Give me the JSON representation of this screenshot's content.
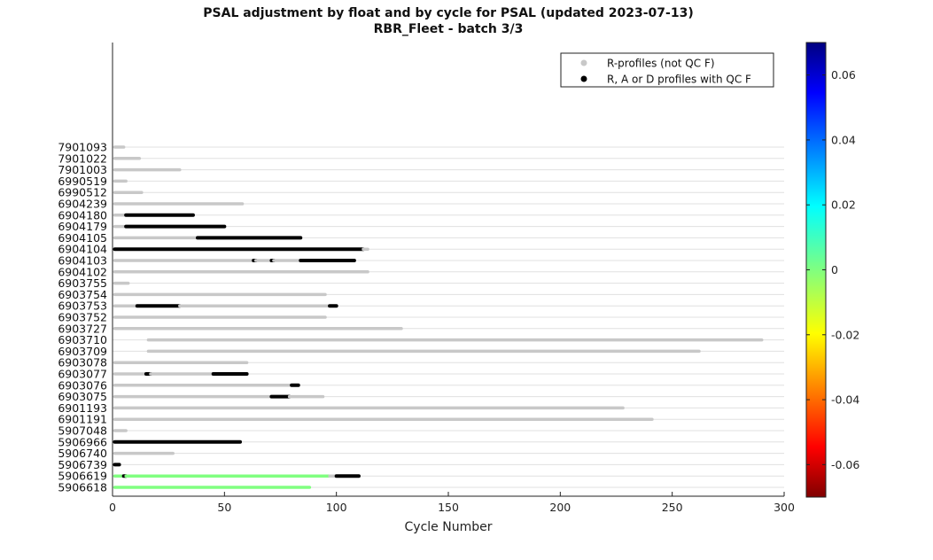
{
  "title_line1": "PSAL adjustment by float and by cycle for PSAL (updated 2023-07-13)",
  "title_line2": "RBR_Fleet - batch 3/3",
  "chart_data": {
    "type": "scatter",
    "xlabel": "Cycle Number",
    "ylabel": "",
    "xlim": [
      0,
      300
    ],
    "xticks": [
      0,
      50,
      100,
      150,
      200,
      250,
      300
    ],
    "grid": "horizontal",
    "legend": {
      "placement": "top-right",
      "entries": [
        {
          "label": "R-profiles (not QC F)",
          "color": "#c8c8c8"
        },
        {
          "label": "R, A or D profiles with QC F",
          "color": "#000000"
        }
      ]
    },
    "colorbar": {
      "range": [
        -0.07,
        0.07
      ],
      "ticks": [
        0.06,
        0.04,
        0.02,
        0,
        -0.02,
        -0.04,
        -0.06
      ],
      "tick_labels": [
        "0.06",
        "0.04",
        "0.02",
        "0",
        "-0.02",
        "-0.04",
        "-0.06"
      ],
      "colormap": "jet"
    },
    "floats": [
      {
        "id": "7901093",
        "segments": [
          [
            1,
            5,
            "gray"
          ]
        ]
      },
      {
        "id": "7901022",
        "segments": [
          [
            1,
            12,
            "gray"
          ]
        ]
      },
      {
        "id": "7901003",
        "segments": [
          [
            1,
            30,
            "gray"
          ]
        ]
      },
      {
        "id": "6990519",
        "segments": [
          [
            1,
            6,
            "gray"
          ]
        ]
      },
      {
        "id": "6990512",
        "segments": [
          [
            1,
            13,
            "gray"
          ]
        ]
      },
      {
        "id": "6904239",
        "segments": [
          [
            1,
            58,
            "gray"
          ]
        ]
      },
      {
        "id": "6904180",
        "segments": [
          [
            1,
            6,
            "gray"
          ],
          [
            6,
            36,
            "black"
          ]
        ]
      },
      {
        "id": "6904179",
        "segments": [
          [
            1,
            6,
            "gray"
          ],
          [
            6,
            50,
            "black"
          ]
        ]
      },
      {
        "id": "6904105",
        "segments": [
          [
            1,
            38,
            "gray"
          ],
          [
            38,
            84,
            "black"
          ]
        ]
      },
      {
        "id": "6904104",
        "segments": [
          [
            1,
            112,
            "black"
          ],
          [
            112,
            114,
            "gray"
          ]
        ]
      },
      {
        "id": "6904103",
        "segments": [
          [
            1,
            63,
            "gray"
          ],
          [
            63,
            64,
            "black"
          ],
          [
            64,
            71,
            "gray"
          ],
          [
            71,
            72,
            "black"
          ],
          [
            72,
            84,
            "gray"
          ],
          [
            84,
            108,
            "black"
          ]
        ]
      },
      {
        "id": "6904102",
        "segments": [
          [
            1,
            114,
            "gray"
          ]
        ]
      },
      {
        "id": "6903755",
        "segments": [
          [
            1,
            7,
            "gray"
          ]
        ]
      },
      {
        "id": "6903754",
        "segments": [
          [
            1,
            95,
            "gray"
          ]
        ]
      },
      {
        "id": "6903753",
        "segments": [
          [
            1,
            11,
            "gray"
          ],
          [
            11,
            30,
            "black"
          ],
          [
            30,
            97,
            "gray"
          ],
          [
            97,
            100,
            "black"
          ]
        ]
      },
      {
        "id": "6903752",
        "segments": [
          [
            1,
            95,
            "gray"
          ]
        ]
      },
      {
        "id": "6903727",
        "segments": [
          [
            1,
            129,
            "gray"
          ]
        ]
      },
      {
        "id": "6903710",
        "segments": [
          [
            16,
            290,
            "gray"
          ]
        ]
      },
      {
        "id": "6903709",
        "segments": [
          [
            16,
            262,
            "gray"
          ]
        ]
      },
      {
        "id": "6903078",
        "segments": [
          [
            1,
            60,
            "gray"
          ]
        ]
      },
      {
        "id": "6903077",
        "segments": [
          [
            1,
            15,
            "gray"
          ],
          [
            15,
            17,
            "black"
          ],
          [
            17,
            45,
            "gray"
          ],
          [
            45,
            60,
            "black"
          ]
        ]
      },
      {
        "id": "6903076",
        "segments": [
          [
            1,
            80,
            "gray"
          ],
          [
            80,
            83,
            "black"
          ]
        ]
      },
      {
        "id": "6903075",
        "segments": [
          [
            1,
            71,
            "gray"
          ],
          [
            71,
            79,
            "black"
          ],
          [
            79,
            94,
            "gray"
          ]
        ]
      },
      {
        "id": "6901193",
        "segments": [
          [
            1,
            228,
            "gray"
          ]
        ]
      },
      {
        "id": "6901191",
        "segments": [
          [
            1,
            241,
            "gray"
          ]
        ]
      },
      {
        "id": "5907048",
        "segments": [
          [
            1,
            6,
            "gray"
          ]
        ]
      },
      {
        "id": "5906966",
        "segments": [
          [
            1,
            57,
            "black"
          ]
        ]
      },
      {
        "id": "5906740",
        "segments": [
          [
            1,
            27,
            "gray"
          ]
        ]
      },
      {
        "id": "5906739",
        "segments": [
          [
            1,
            3,
            "black"
          ]
        ]
      },
      {
        "id": "5906619",
        "segments": [
          [
            1,
            5,
            "adj"
          ],
          [
            5,
            6,
            "black"
          ],
          [
            6,
            97,
            "adj"
          ],
          [
            97,
            100,
            "gray"
          ],
          [
            100,
            110,
            "black"
          ]
        ]
      },
      {
        "id": "5906618",
        "segments": [
          [
            1,
            88,
            "adj"
          ]
        ]
      }
    ],
    "adjusted_value": 0,
    "adjusted_color": "#80ff80"
  }
}
